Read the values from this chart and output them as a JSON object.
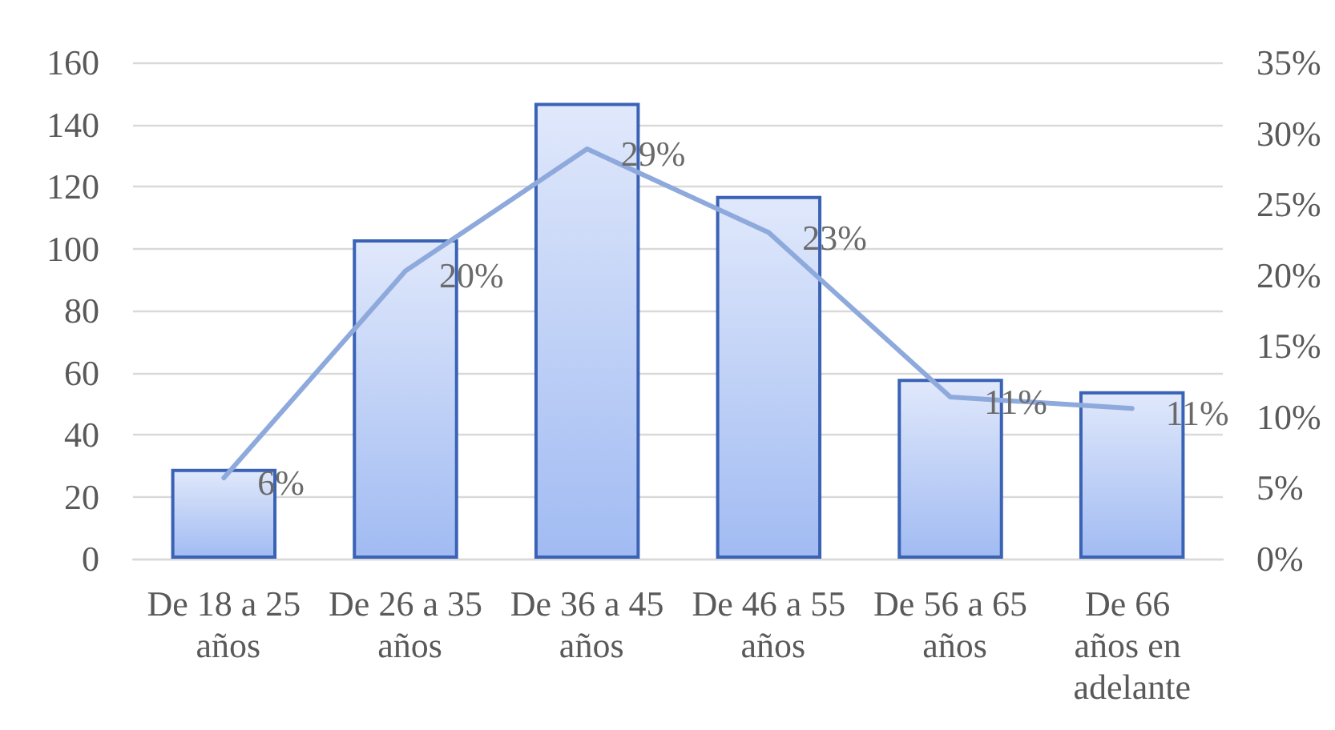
{
  "chart_data": {
    "type": "bar",
    "categories": [
      "De 18 a 25 años",
      "De 26 a 35 años",
      "De 36 a 45 años",
      "De 46 a 55 años",
      "De 56 a 65 años",
      "De 66 años en adelante"
    ],
    "series": [
      {
        "color": "#3a62b5",
        "values": [
          29,
          103,
          147,
          117,
          58,
          54
        ]
      },
      {
        "type": "line",
        "axis": "y2",
        "color": "#8ea9dc",
        "values": [
          5.7,
          20.3,
          28.9,
          23.0,
          11.4,
          10.6
        ],
        "value_labels": [
          "6%",
          "20%",
          "29%",
          "23%",
          "11%",
          "11%"
        ]
      }
    ],
    "ylim": [
      0,
      160
    ],
    "yticks": [
      0,
      20,
      40,
      60,
      80,
      100,
      120,
      140,
      160
    ],
    "y2lim": [
      0,
      35
    ],
    "y2ticks": [
      {
        "value": 0,
        "label": "0%"
      },
      {
        "value": 5,
        "label": "5%"
      },
      {
        "value": 10,
        "label": "10%"
      },
      {
        "value": 15,
        "label": "15%"
      },
      {
        "value": 20,
        "label": "20%"
      },
      {
        "value": 25,
        "label": "25%"
      },
      {
        "value": 30,
        "label": "30%"
      },
      {
        "value": 35,
        "label": "35%"
      }
    ],
    "grid": "y",
    "marker": "none"
  }
}
